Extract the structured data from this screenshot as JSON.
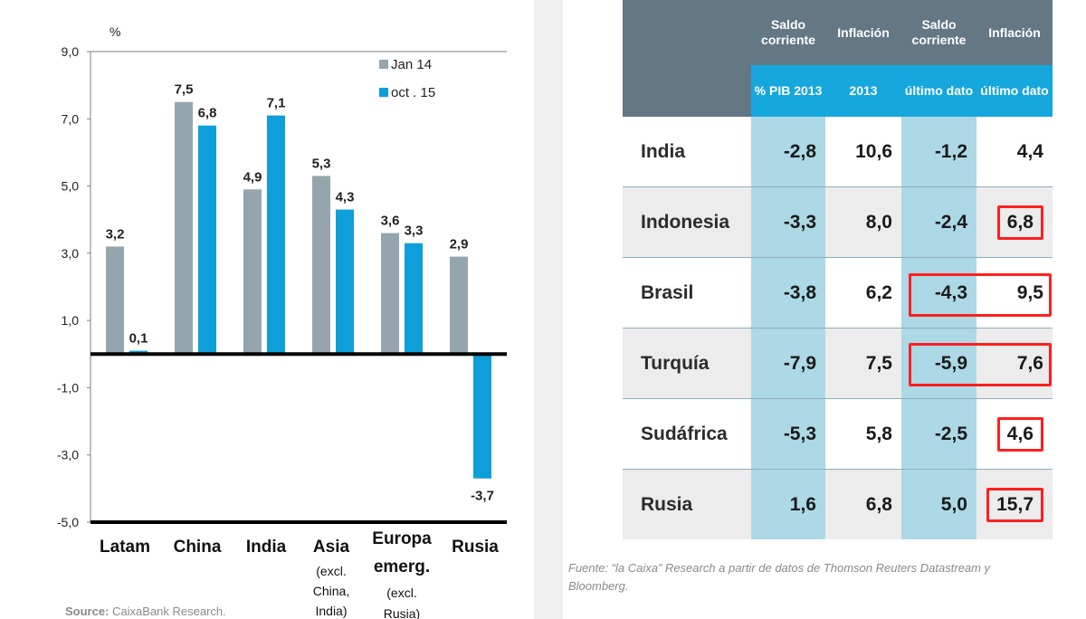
{
  "chart_data": {
    "type": "bar",
    "ylabel": "%",
    "ylim": [
      -5,
      9
    ],
    "yticks": [
      "9,0",
      "7,0",
      "5,0",
      "3,0",
      "1,0",
      "-1,0",
      "-3,0",
      "-5,0"
    ],
    "categories": [
      "Latam",
      "China",
      "India",
      "Asia",
      "Europa emerg.",
      "Rusia"
    ],
    "category_labels": [
      [
        "Latam"
      ],
      [
        "China"
      ],
      [
        "India"
      ],
      [
        "Asia",
        "(excl.",
        "China,",
        "India)"
      ],
      [
        "Europa",
        "emerg.",
        "(excl.",
        "Rusia)"
      ],
      [
        "Rusia"
      ]
    ],
    "series": [
      {
        "name": "Jan 14",
        "color": "#95a5ad",
        "values": [
          3.2,
          7.5,
          4.9,
          5.3,
          3.6,
          2.9
        ],
        "labels": [
          "3,2",
          "7,5",
          "4,9",
          "5,3",
          "3,6",
          "2,9"
        ]
      },
      {
        "name": "oct . 15",
        "color": "#0e9fd8",
        "values": [
          0.1,
          6.8,
          7.1,
          4.3,
          3.3,
          -3.7
        ],
        "labels": [
          "0,1",
          "6,8",
          "7,1",
          "4,3",
          "3,3",
          "-3,7"
        ]
      }
    ],
    "legend_position": "top-right",
    "source_label": "Source:",
    "source_text": "CaixaBank Research."
  },
  "table": {
    "header_top": [
      "",
      "Saldo corriente",
      "Inflación",
      "Saldo corriente",
      "Inflación"
    ],
    "header_sub": [
      "",
      "% PIB 2013",
      "2013",
      "último dato",
      "último dato"
    ],
    "rows": [
      {
        "country": "India",
        "values": [
          "-2,8",
          "10,6",
          "-1,2",
          "4,4"
        ]
      },
      {
        "country": "Indonesia",
        "values": [
          "-3,3",
          "8,0",
          "-2,4",
          "6,8"
        ]
      },
      {
        "country": "Brasil",
        "values": [
          "-3,8",
          "6,2",
          "-4,3",
          "9,5"
        ]
      },
      {
        "country": "Turquía",
        "values": [
          "-7,9",
          "7,5",
          "-5,9",
          "7,6"
        ]
      },
      {
        "country": "Sudáfrica",
        "values": [
          "-5,3",
          "5,8",
          "-2,5",
          "4,6"
        ]
      },
      {
        "country": "Rusia",
        "values": [
          "1,6",
          "6,8",
          "5,0",
          "15,7"
        ]
      }
    ],
    "highlight_color": "#ff1f1f",
    "footnote": "Fuente: “la Caixa” Research a partir de datos de Thomson Reuters Datastream y Bloomberg."
  }
}
